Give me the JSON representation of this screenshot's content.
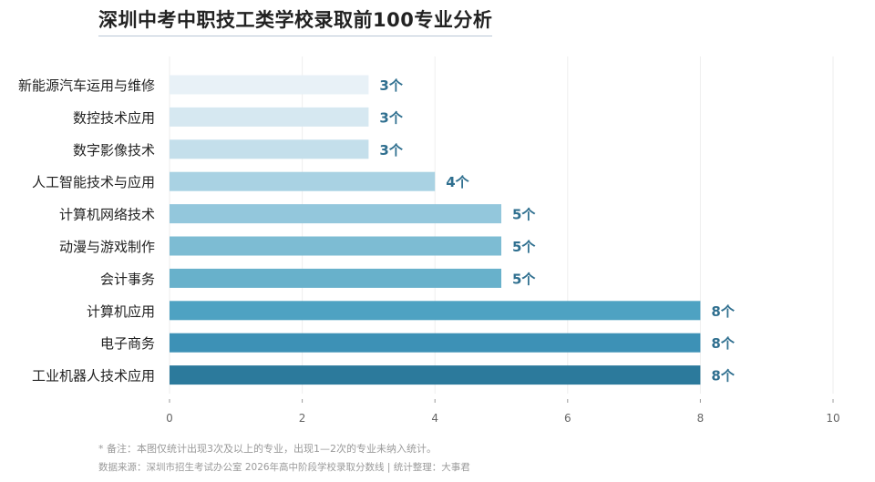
{
  "title": "深圳中考中职技工类学校录取前100专业分析",
  "footnote": "* 备注：本图仅统计出现3次及以上的专业，出现1—2次的专业未纳入统计。",
  "source": "数据来源：深圳市招生考试办公室 2026年高中阶段学校录取分数线 | 统计整理：大事君",
  "chart_data": {
    "type": "bar",
    "orientation": "horizontal",
    "title": "深圳中考中职技工类学校录取前100专业分析",
    "xlabel": "",
    "ylabel": "",
    "xlim": [
      0,
      10
    ],
    "xticks": [
      0,
      2,
      4,
      6,
      8,
      10
    ],
    "grid": true,
    "legend": "none",
    "value_suffix": "个",
    "categories": [
      "新能源汽车运用与维修",
      "数控技术应用",
      "数字影像技术",
      "人工智能技术与应用",
      "计算机网络技术",
      "动漫与游戏制作",
      "会计事务",
      "计算机应用",
      "电子商务",
      "工业机器人技术应用"
    ],
    "values": [
      3,
      3,
      3,
      4,
      5,
      5,
      5,
      8,
      8,
      8
    ],
    "colors": [
      "#e8f1f7",
      "#d6e8f1",
      "#c4dfeb",
      "#a9d2e3",
      "#93c7dc",
      "#7dbcd3",
      "#68b1cb",
      "#4ea2c2",
      "#3d91b6",
      "#2c7a9c"
    ],
    "label_color": "#2f6f8f"
  }
}
